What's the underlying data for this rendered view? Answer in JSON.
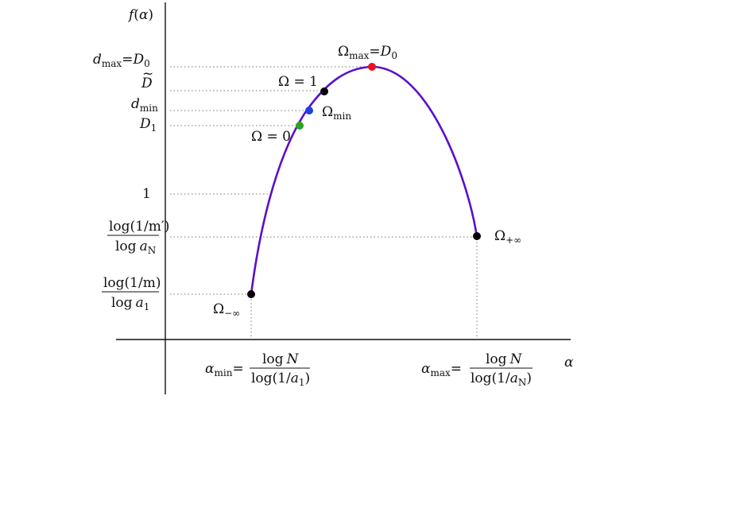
{
  "colors": {
    "curve": "#5b0fc9",
    "axis": "#111111",
    "guide": "#777777",
    "point_red": "#e8131a",
    "point_blue": "#1f3fe8",
    "point_green": "#2ba51f",
    "point_black": "#000000"
  },
  "axes": {
    "y_label": {
      "f": "f",
      "open": "(",
      "var": "α",
      "close": ")"
    },
    "x_label": "α"
  },
  "y_ticks": {
    "dmax": {
      "d": "d",
      "sub": "max",
      "eq": "=",
      "D": "D",
      "sub0": "0"
    },
    "dtilde": {
      "tilde": "~",
      "D": "D"
    },
    "dmin": {
      "d": "d",
      "sub": "min"
    },
    "d1": {
      "D": "D",
      "sub1": "1"
    },
    "one": "1",
    "frac_m_prime": {
      "num": "log(1/m′)",
      "den_log": "log",
      "den_a": "a",
      "den_sub": "N"
    },
    "frac_m": {
      "num": "log(1/m)",
      "den_log": "log",
      "den_a": "a",
      "den_sub": "1"
    }
  },
  "x_ticks": {
    "alpha_min": {
      "alpha": "α",
      "sub": "min",
      "eq": "=",
      "num_log": "log",
      "num_N": "N",
      "den_pre": "log(1/",
      "den_a": "a",
      "den_sub": "1",
      "den_post": ")"
    },
    "alpha_max": {
      "alpha": "α",
      "sub": "max",
      "eq": "=",
      "num_log": "log",
      "num_N": "N",
      "den_pre": "log(1/",
      "den_a": "a",
      "den_sub": "N",
      "den_post": ")"
    }
  },
  "points": {
    "omega_max": {
      "omega": "Ω",
      "sub": "max",
      "eq": "=",
      "D": "D",
      "sub0": "0"
    },
    "omega_one": {
      "text": "Ω = 1"
    },
    "omega_min": {
      "omega": "Ω",
      "sub": "min"
    },
    "omega_zero": {
      "text": "Ω = 0"
    },
    "omega_minus_inf": {
      "omega": "Ω",
      "sub": "−∞"
    },
    "omega_plus_inf": {
      "omega": "Ω",
      "sub": "+∞"
    }
  }
}
